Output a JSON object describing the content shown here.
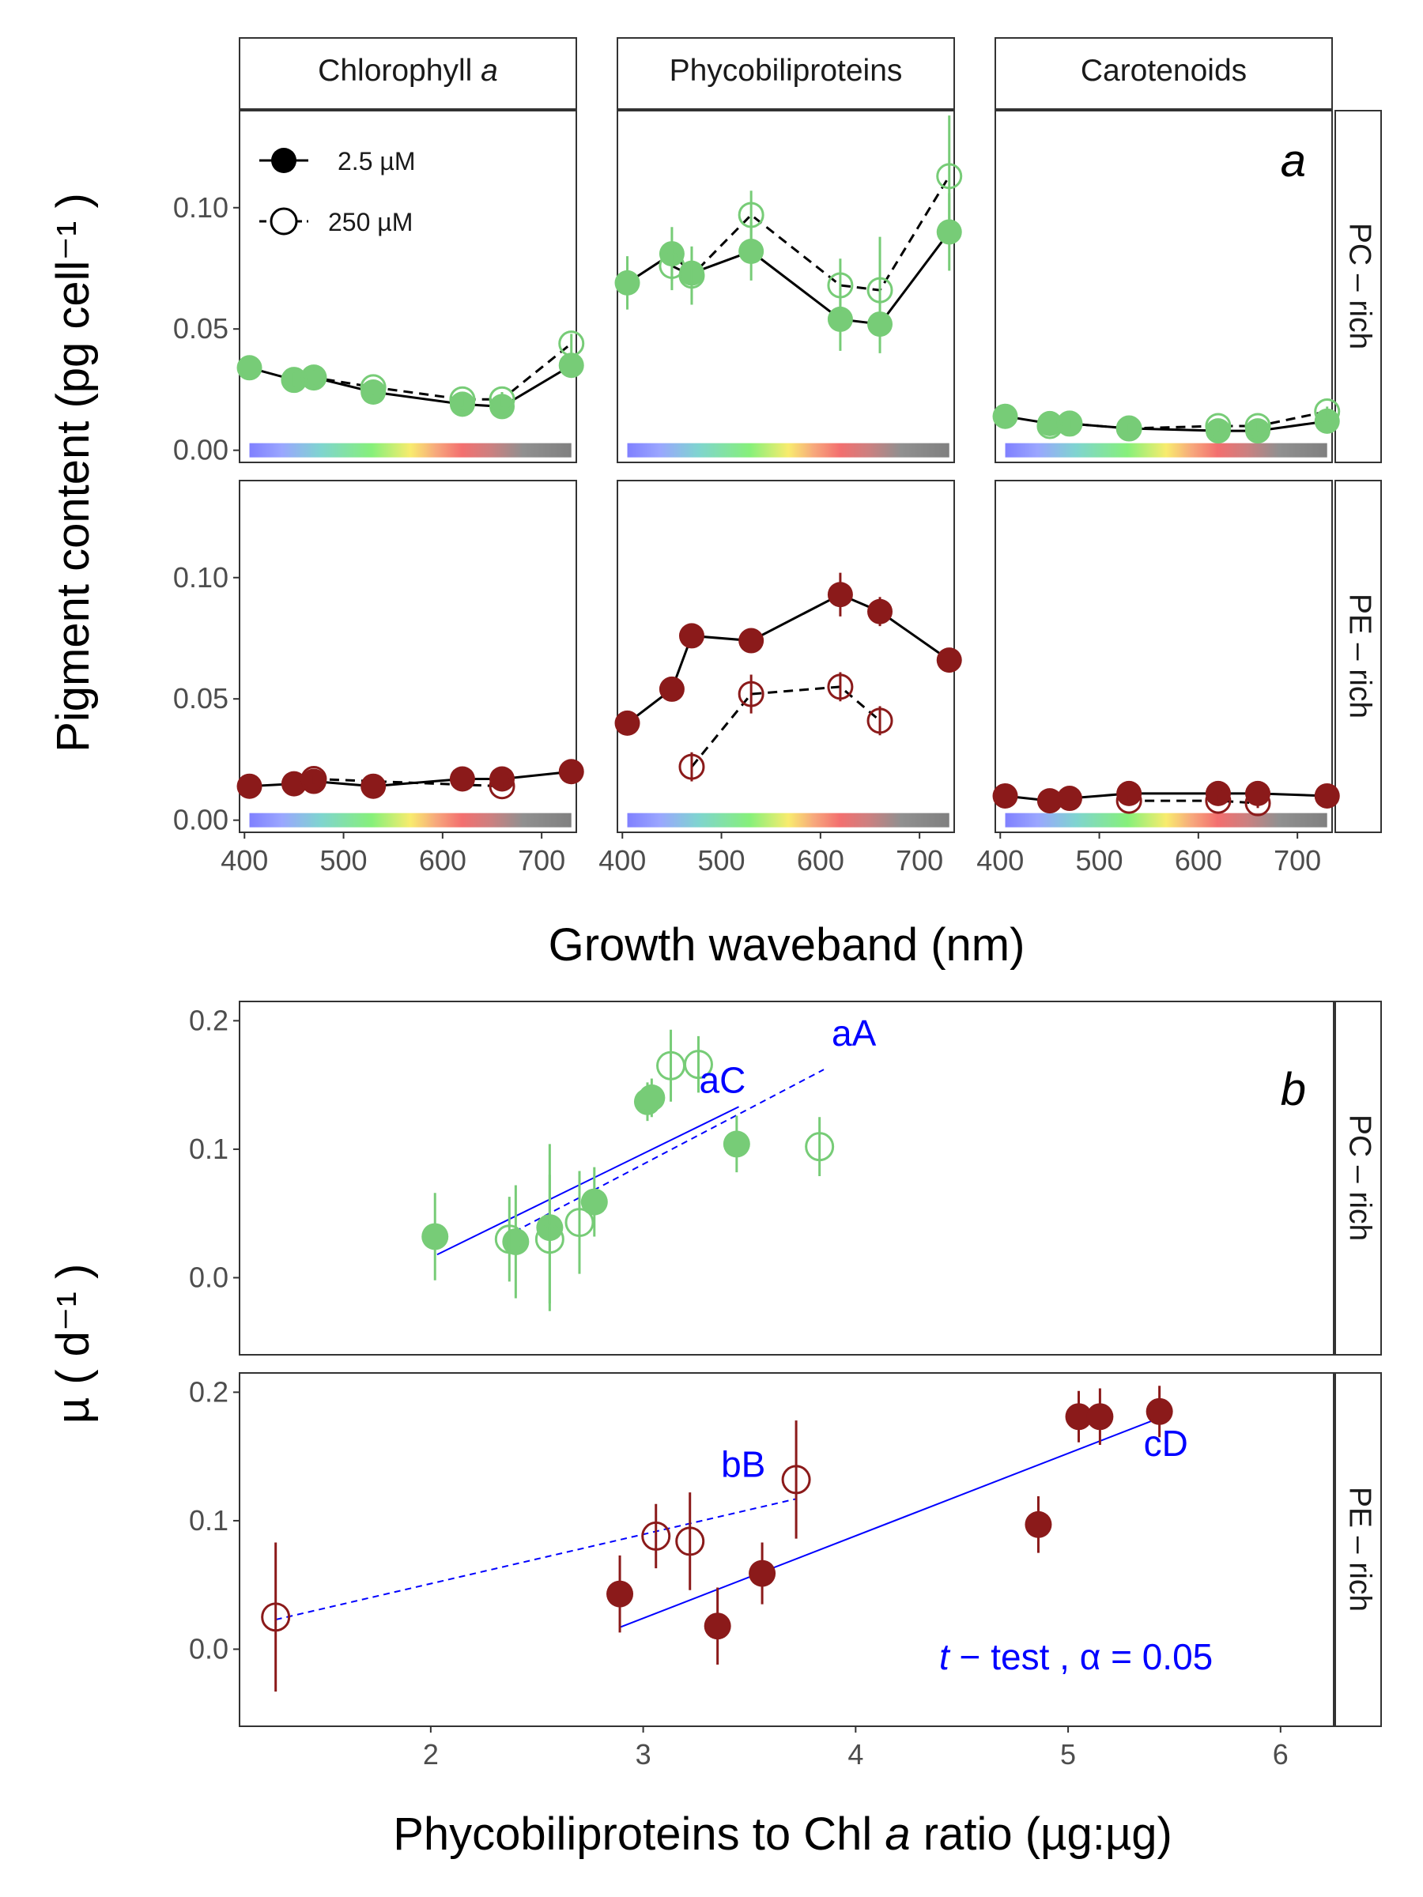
{
  "figure": {
    "panel_a_letter": "a",
    "panel_b_letter": "b",
    "strip_columns": [
      "Chlorophyll a",
      "Phycobiliproteins",
      "Carotenoids"
    ],
    "strip_rows": [
      "PC – rich",
      "PE – rich"
    ],
    "legend": [
      {
        "label": "2.5 µM",
        "filled": true,
        "line": "solid"
      },
      {
        "label": "250 µM",
        "filled": false,
        "line": "dashed"
      }
    ],
    "colors": {
      "pc_rich": "#77cc77",
      "pe_rich": "#8b1a1a",
      "fit": "#0000ff",
      "line": "#000000"
    },
    "ttest_label": {
      "italic": "t",
      "rest": " − test , α = 0.05"
    }
  },
  "chart_data": [
    {
      "type": "line",
      "panel": "a",
      "xlabel": "Growth waveband (nm)",
      "ylabel": "Pigment content  (pg cell⁻¹ )",
      "xlim": [
        395,
        735
      ],
      "ylim": [
        -0.005,
        0.14
      ],
      "xticks": [
        400,
        500,
        600,
        700
      ],
      "yticks": [
        0.0,
        0.05,
        0.1
      ],
      "ytick_labels": [
        "0.00",
        "0.05",
        "0.10"
      ],
      "spectrum_bar": {
        "x_range": [
          405,
          730
        ],
        "y": 0.0
      },
      "facets": [
        {
          "row": "PC – rich",
          "col": "Chlorophyll a",
          "series": [
            {
              "name": "2.5 µM",
              "points": [
                [
                  405,
                  0.034,
                  0.003
                ],
                [
                  450,
                  0.029,
                  0.003
                ],
                [
                  470,
                  0.03,
                  0.003
                ],
                [
                  530,
                  0.024,
                  0.003
                ],
                [
                  620,
                  0.019,
                  0.003
                ],
                [
                  660,
                  0.018,
                  0.003
                ],
                [
                  730,
                  0.035,
                  0.003
                ]
              ]
            },
            {
              "name": "250 µM",
              "points": [
                [
                  450,
                  0.029,
                  0.003
                ],
                [
                  470,
                  0.03,
                  0.003
                ],
                [
                  530,
                  0.026,
                  0.003
                ],
                [
                  620,
                  0.021,
                  0.003
                ],
                [
                  660,
                  0.021,
                  0.003
                ],
                [
                  730,
                  0.044,
                  0.004
                ]
              ]
            }
          ]
        },
        {
          "row": "PC – rich",
          "col": "Phycobiliproteins",
          "series": [
            {
              "name": "2.5 µM",
              "points": [
                [
                  405,
                  0.069,
                  0.011
                ],
                [
                  450,
                  0.081,
                  0.011
                ],
                [
                  470,
                  0.073,
                  0.011
                ],
                [
                  530,
                  0.082,
                  0.012
                ],
                [
                  620,
                  0.054,
                  0.013
                ],
                [
                  660,
                  0.052,
                  0.012
                ],
                [
                  730,
                  0.09,
                  0.016
                ]
              ]
            },
            {
              "name": "250 µM",
              "points": [
                [
                  450,
                  0.076,
                  0.01
                ],
                [
                  470,
                  0.072,
                  0.012
                ],
                [
                  530,
                  0.097,
                  0.01
                ],
                [
                  620,
                  0.068,
                  0.011
                ],
                [
                  660,
                  0.066,
                  0.022
                ],
                [
                  730,
                  0.113,
                  0.025
                ]
              ]
            }
          ]
        },
        {
          "row": "PC – rich",
          "col": "Carotenoids",
          "series": [
            {
              "name": "2.5 µM",
              "points": [
                [
                  405,
                  0.014,
                  0.002
                ],
                [
                  450,
                  0.011,
                  0.002
                ],
                [
                  470,
                  0.011,
                  0.002
                ],
                [
                  530,
                  0.009,
                  0.002
                ],
                [
                  620,
                  0.008,
                  0.002
                ],
                [
                  660,
                  0.008,
                  0.002
                ],
                [
                  730,
                  0.012,
                  0.002
                ]
              ]
            },
            {
              "name": "250 µM",
              "points": [
                [
                  450,
                  0.01,
                  0.002
                ],
                [
                  470,
                  0.011,
                  0.002
                ],
                [
                  530,
                  0.009,
                  0.002
                ],
                [
                  620,
                  0.01,
                  0.002
                ],
                [
                  660,
                  0.01,
                  0.002
                ],
                [
                  730,
                  0.016,
                  0.002
                ]
              ]
            }
          ]
        },
        {
          "row": "PE – rich",
          "col": "Chlorophyll a",
          "series": [
            {
              "name": "2.5 µM",
              "points": [
                [
                  405,
                  0.014,
                  0.002
                ],
                [
                  450,
                  0.015,
                  0.002
                ],
                [
                  470,
                  0.016,
                  0.002
                ],
                [
                  530,
                  0.014,
                  0.002
                ],
                [
                  620,
                  0.017,
                  0.002
                ],
                [
                  660,
                  0.017,
                  0.002
                ],
                [
                  730,
                  0.02,
                  0.002
                ]
              ]
            },
            {
              "name": "250 µM",
              "points": [
                [
                  470,
                  0.017,
                  0.002
                ],
                [
                  660,
                  0.014,
                  0.002
                ]
              ]
            }
          ]
        },
        {
          "row": "PE – rich",
          "col": "Phycobiliproteins",
          "series": [
            {
              "name": "2.5 µM",
              "points": [
                [
                  405,
                  0.04,
                  0.003
                ],
                [
                  450,
                  0.054,
                  0.003
                ],
                [
                  470,
                  0.076,
                  0.003
                ],
                [
                  530,
                  0.074,
                  0.003
                ],
                [
                  620,
                  0.093,
                  0.009
                ],
                [
                  660,
                  0.086,
                  0.006
                ],
                [
                  730,
                  0.066,
                  0.003
                ]
              ]
            },
            {
              "name": "250 µM",
              "points": [
                [
                  470,
                  0.022,
                  0.006
                ],
                [
                  530,
                  0.052,
                  0.008
                ],
                [
                  620,
                  0.055,
                  0.006
                ],
                [
                  660,
                  0.041,
                  0.006
                ]
              ]
            }
          ]
        },
        {
          "row": "PE – rich",
          "col": "Carotenoids",
          "series": [
            {
              "name": "2.5 µM",
              "points": [
                [
                  405,
                  0.01,
                  0.002
                ],
                [
                  450,
                  0.008,
                  0.002
                ],
                [
                  470,
                  0.009,
                  0.002
                ],
                [
                  530,
                  0.011,
                  0.002
                ],
                [
                  620,
                  0.011,
                  0.002
                ],
                [
                  660,
                  0.011,
                  0.002
                ],
                [
                  730,
                  0.01,
                  0.002
                ]
              ]
            },
            {
              "name": "250 µM",
              "points": [
                [
                  530,
                  0.008,
                  0.002
                ],
                [
                  620,
                  0.008,
                  0.002
                ],
                [
                  660,
                  0.007,
                  0.002
                ]
              ]
            }
          ]
        }
      ]
    },
    {
      "type": "scatter",
      "panel": "b",
      "xlabel_parts": [
        "Phycobiliproteins to Chl ",
        "a",
        " ratio (µg:µg)"
      ],
      "ylabel": "µ  ( d⁻¹ )",
      "xlim": [
        1.1,
        6.25
      ],
      "xticks": [
        2,
        3,
        4,
        5,
        6
      ],
      "yticks": [
        0.0,
        0.1,
        0.2
      ],
      "ytick_labels": [
        "0.0",
        "0.1",
        "0.2"
      ],
      "facets": [
        {
          "row": "PC – rich",
          "ylim": [
            -0.06,
            0.215
          ],
          "series": [
            {
              "name": "2.5 µM",
              "points": [
                [
                  2.02,
                  0.032,
                  0.034
                ],
                [
                  2.4,
                  0.028,
                  0.044
                ],
                [
                  2.56,
                  0.039,
                  0.065
                ],
                [
                  2.77,
                  0.059,
                  0.027
                ],
                [
                  3.02,
                  0.137,
                  0.015
                ],
                [
                  3.04,
                  0.14,
                  0.015
                ],
                [
                  3.44,
                  0.104,
                  0.022
                ]
              ]
            },
            {
              "name": "250 µM",
              "points": [
                [
                  2.37,
                  0.03,
                  0.033
                ],
                [
                  2.56,
                  0.03,
                  0.05
                ],
                [
                  2.7,
                  0.043,
                  0.04
                ],
                [
                  3.13,
                  0.165,
                  0.028
                ],
                [
                  3.26,
                  0.166,
                  0.022
                ],
                [
                  3.83,
                  0.102,
                  0.023
                ]
              ]
            }
          ],
          "fits": [
            {
              "label": "aC",
              "style": "solid",
              "line": [
                [
                  2.03,
                  0.018
                ],
                [
                  3.45,
                  0.133
                ]
              ]
            },
            {
              "label": "aA",
              "style": "dashed",
              "line": [
                [
                  2.35,
                  0.032
                ],
                [
                  3.85,
                  0.162
                ]
              ]
            }
          ]
        },
        {
          "row": "PE – rich",
          "ylim": [
            -0.06,
            0.215
          ],
          "series": [
            {
              "name": "2.5 µM",
              "points": [
                [
                  2.89,
                  0.043,
                  0.03
                ],
                [
                  3.35,
                  0.018,
                  0.03
                ],
                [
                  3.56,
                  0.059,
                  0.024
                ],
                [
                  4.86,
                  0.097,
                  0.022
                ],
                [
                  5.05,
                  0.181,
                  0.02
                ],
                [
                  5.15,
                  0.181,
                  0.022
                ],
                [
                  5.43,
                  0.185,
                  0.02
                ]
              ]
            },
            {
              "name": "250 µM",
              "points": [
                [
                  1.27,
                  0.025,
                  0.058
                ],
                [
                  3.06,
                  0.088,
                  0.025
                ],
                [
                  3.22,
                  0.084,
                  0.038
                ],
                [
                  3.72,
                  0.132,
                  0.046
                ]
              ]
            }
          ],
          "fits": [
            {
              "label": "cD",
              "style": "solid",
              "line": [
                [
                  2.89,
                  0.017
                ],
                [
                  5.43,
                  0.18
                ]
              ]
            },
            {
              "label": "bB",
              "style": "dashed",
              "line": [
                [
                  1.27,
                  0.023
                ],
                [
                  3.72,
                  0.117
                ]
              ]
            }
          ]
        }
      ]
    }
  ]
}
